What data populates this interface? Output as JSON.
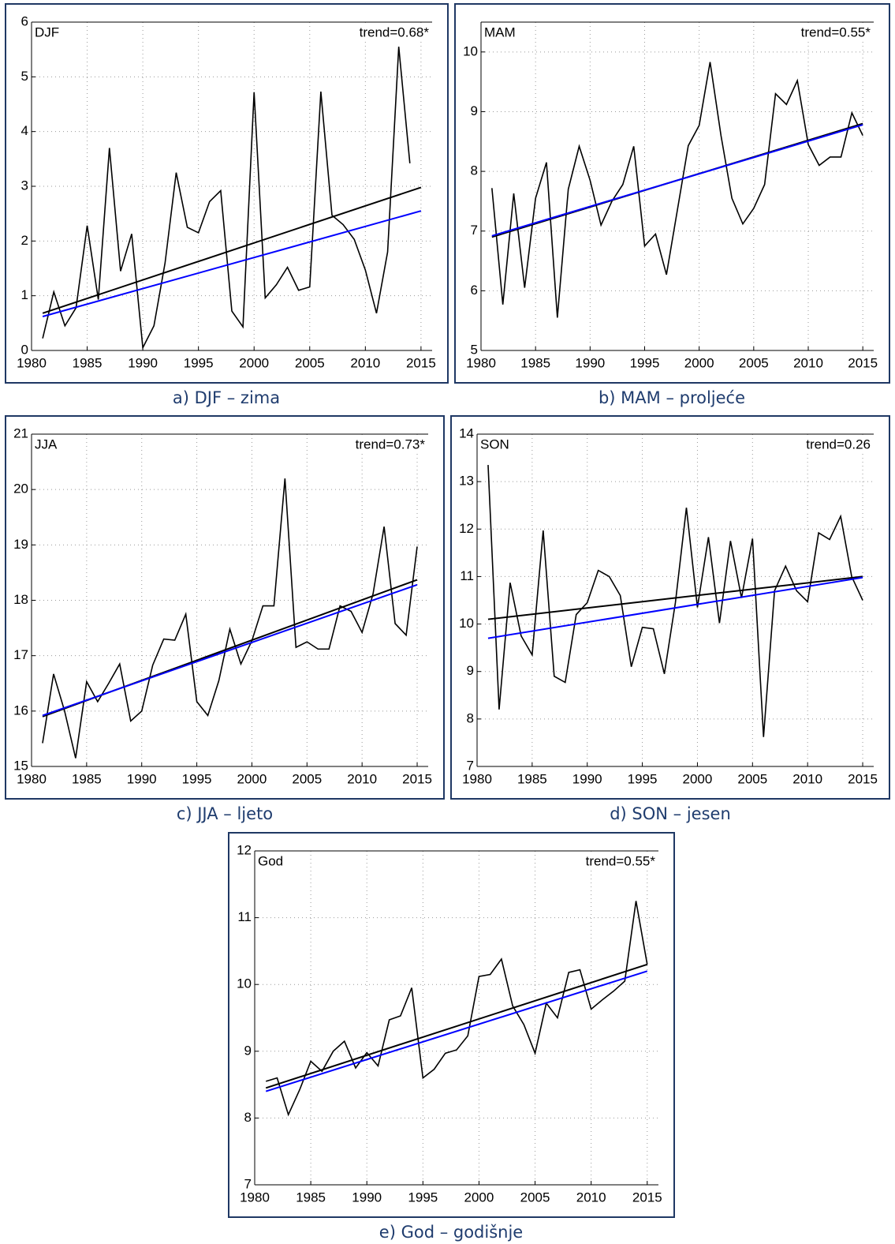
{
  "chart_data": [
    {
      "type": "line",
      "label": "DJF",
      "annotation": "trend=0.68*",
      "caption": "a) DJF – zima",
      "x": [
        1981,
        1982,
        1983,
        1984,
        1985,
        1986,
        1987,
        1988,
        1989,
        1990,
        1991,
        1992,
        1993,
        1994,
        1995,
        1996,
        1997,
        1998,
        1999,
        2000,
        2001,
        2002,
        2003,
        2004,
        2005,
        2006,
        2007,
        2008,
        2009,
        2010,
        2011,
        2012,
        2013,
        2014,
        2015
      ],
      "series": [
        {
          "color": "#000000",
          "values": [
            0.22,
            1.07,
            0.45,
            0.78,
            2.28,
            0.93,
            3.7,
            1.45,
            2.13,
            0.05,
            0.45,
            1.6,
            3.25,
            2.25,
            2.15,
            2.72,
            2.92,
            0.72,
            0.43,
            4.72,
            0.96,
            1.2,
            1.52,
            1.1,
            1.16,
            4.73,
            2.47,
            2.3,
            2.03,
            1.47,
            0.68,
            1.8,
            5.55,
            3.42,
            null
          ]
        },
        {
          "color": "#000000",
          "x": [
            1981,
            2015
          ],
          "values": [
            0.68,
            2.98
          ]
        },
        {
          "color": "#0000ff",
          "x": [
            1981,
            2015
          ],
          "values": [
            0.62,
            2.55
          ]
        }
      ],
      "xlim": [
        1980,
        2016
      ],
      "xticks": [
        1980,
        1985,
        1990,
        1995,
        2000,
        2005,
        2010,
        2015
      ],
      "ylim": [
        0,
        6
      ],
      "yticks": [
        0,
        1,
        2,
        3,
        4,
        5,
        6
      ],
      "grid": true
    },
    {
      "type": "line",
      "label": "MAM",
      "annotation": "trend=0.55*",
      "caption": "b) MAM – proljeće",
      "x": [
        1981,
        1982,
        1983,
        1984,
        1985,
        1986,
        1987,
        1988,
        1989,
        1990,
        1991,
        1992,
        1993,
        1994,
        1995,
        1996,
        1997,
        1998,
        1999,
        2000,
        2001,
        2002,
        2003,
        2004,
        2005,
        2006,
        2007,
        2008,
        2009,
        2010,
        2011,
        2012,
        2013,
        2014,
        2015
      ],
      "series": [
        {
          "color": "#000000",
          "values": [
            7.72,
            5.77,
            7.63,
            6.05,
            7.55,
            8.15,
            5.55,
            7.7,
            8.42,
            7.85,
            7.1,
            7.5,
            7.78,
            8.42,
            6.75,
            6.95,
            6.27,
            7.35,
            8.43,
            8.77,
            9.83,
            8.6,
            7.55,
            7.12,
            7.38,
            7.78,
            9.3,
            9.12,
            9.52,
            8.45,
            8.1,
            8.24,
            8.24,
            8.98,
            8.6
          ]
        },
        {
          "color": "#000000",
          "x": [
            1981,
            2015
          ],
          "values": [
            6.9,
            8.8
          ]
        },
        {
          "color": "#0000ff",
          "x": [
            1981,
            2015
          ],
          "values": [
            6.92,
            8.78
          ]
        }
      ],
      "xlim": [
        1980,
        2016
      ],
      "xticks": [
        1980,
        1985,
        1990,
        1995,
        2000,
        2005,
        2010,
        2015
      ],
      "ylim": [
        5,
        10.5
      ],
      "yticks": [
        5,
        6,
        7,
        8,
        9,
        10
      ],
      "grid": true
    },
    {
      "type": "line",
      "label": "JJA",
      "annotation": "trend=0.73*",
      "caption": "c) JJA – ljeto",
      "x": [
        1981,
        1982,
        1983,
        1984,
        1985,
        1986,
        1987,
        1988,
        1989,
        1990,
        1991,
        1992,
        1993,
        1994,
        1995,
        1996,
        1997,
        1998,
        1999,
        2000,
        2001,
        2002,
        2003,
        2004,
        2005,
        2006,
        2007,
        2008,
        2009,
        2010,
        2011,
        2012,
        2013,
        2014,
        2015
      ],
      "series": [
        {
          "color": "#000000",
          "values": [
            15.42,
            16.67,
            16.0,
            15.15,
            16.53,
            16.17,
            16.5,
            16.85,
            15.82,
            16.0,
            16.83,
            17.3,
            17.28,
            17.75,
            16.17,
            15.92,
            16.55,
            17.48,
            16.85,
            17.27,
            17.9,
            17.9,
            20.2,
            17.15,
            17.25,
            17.12,
            17.12,
            17.9,
            17.8,
            17.42,
            18.12,
            19.33,
            17.58,
            17.37,
            18.97
          ]
        },
        {
          "color": "#000000",
          "x": [
            1981,
            2015
          ],
          "values": [
            15.9,
            18.37
          ]
        },
        {
          "color": "#0000ff",
          "x": [
            1981,
            2015
          ],
          "values": [
            15.92,
            18.28
          ]
        }
      ],
      "xlim": [
        1980,
        2016
      ],
      "xticks": [
        1980,
        1985,
        1990,
        1995,
        2000,
        2005,
        2010,
        2015
      ],
      "ylim": [
        15,
        21
      ],
      "yticks": [
        15,
        16,
        17,
        18,
        19,
        20,
        21
      ],
      "grid": true
    },
    {
      "type": "line",
      "label": "SON",
      "annotation": "trend=0.26",
      "caption": "d) SON – jesen",
      "x": [
        1981,
        1982,
        1983,
        1984,
        1985,
        1986,
        1987,
        1988,
        1989,
        1990,
        1991,
        1992,
        1993,
        1994,
        1995,
        1996,
        1997,
        1998,
        1999,
        2000,
        2001,
        2002,
        2003,
        2004,
        2005,
        2006,
        2007,
        2008,
        2009,
        2010,
        2011,
        2012,
        2013,
        2014,
        2015
      ],
      "series": [
        {
          "color": "#000000",
          "values": [
            13.35,
            8.2,
            10.87,
            9.75,
            9.35,
            11.97,
            8.9,
            8.77,
            10.2,
            10.45,
            11.13,
            11.0,
            10.6,
            9.1,
            9.93,
            9.9,
            8.95,
            10.45,
            12.45,
            10.35,
            11.83,
            10.02,
            11.75,
            10.55,
            11.8,
            7.62,
            10.7,
            11.22,
            10.7,
            10.47,
            11.92,
            11.78,
            12.27,
            11.0,
            10.5
          ]
        },
        {
          "color": "#000000",
          "x": [
            1981,
            2015
          ],
          "values": [
            10.1,
            11.0
          ]
        },
        {
          "color": "#0000ff",
          "x": [
            1981,
            2015
          ],
          "values": [
            9.7,
            10.98
          ]
        }
      ],
      "xlim": [
        1980,
        2016
      ],
      "xticks": [
        1980,
        1985,
        1990,
        1995,
        2000,
        2005,
        2010,
        2015
      ],
      "ylim": [
        7,
        14
      ],
      "yticks": [
        7,
        8,
        9,
        10,
        11,
        12,
        13,
        14
      ],
      "grid": true
    },
    {
      "type": "line",
      "label": "God",
      "annotation": "trend=0.55*",
      "caption": "e) God – godišnje",
      "x": [
        1981,
        1982,
        1983,
        1984,
        1985,
        1986,
        1987,
        1988,
        1989,
        1990,
        1991,
        1992,
        1993,
        1994,
        1995,
        1996,
        1997,
        1998,
        1999,
        2000,
        2001,
        2002,
        2003,
        2004,
        2005,
        2006,
        2007,
        2008,
        2009,
        2010,
        2011,
        2012,
        2013,
        2014,
        2015
      ],
      "series": [
        {
          "color": "#000000",
          "values": [
            8.55,
            8.6,
            8.05,
            8.42,
            8.85,
            8.7,
            9.0,
            9.15,
            8.75,
            8.98,
            8.78,
            9.47,
            9.53,
            9.95,
            8.6,
            8.73,
            8.97,
            9.02,
            9.23,
            10.12,
            10.15,
            10.38,
            9.68,
            9.4,
            8.97,
            9.72,
            9.5,
            10.18,
            10.22,
            9.63,
            9.77,
            9.9,
            10.05,
            11.25,
            10.3
          ]
        },
        {
          "color": "#000000",
          "x": [
            1981,
            2015
          ],
          "values": [
            8.45,
            10.3
          ]
        },
        {
          "color": "#0000ff",
          "x": [
            1981,
            2015
          ],
          "values": [
            8.4,
            10.2
          ]
        }
      ],
      "xlim": [
        1980,
        2016
      ],
      "xticks": [
        1980,
        1985,
        1990,
        1995,
        2000,
        2005,
        2010,
        2015
      ],
      "ylim": [
        7,
        12
      ],
      "yticks": [
        7,
        8,
        9,
        10,
        11,
        12
      ],
      "grid": true
    }
  ]
}
